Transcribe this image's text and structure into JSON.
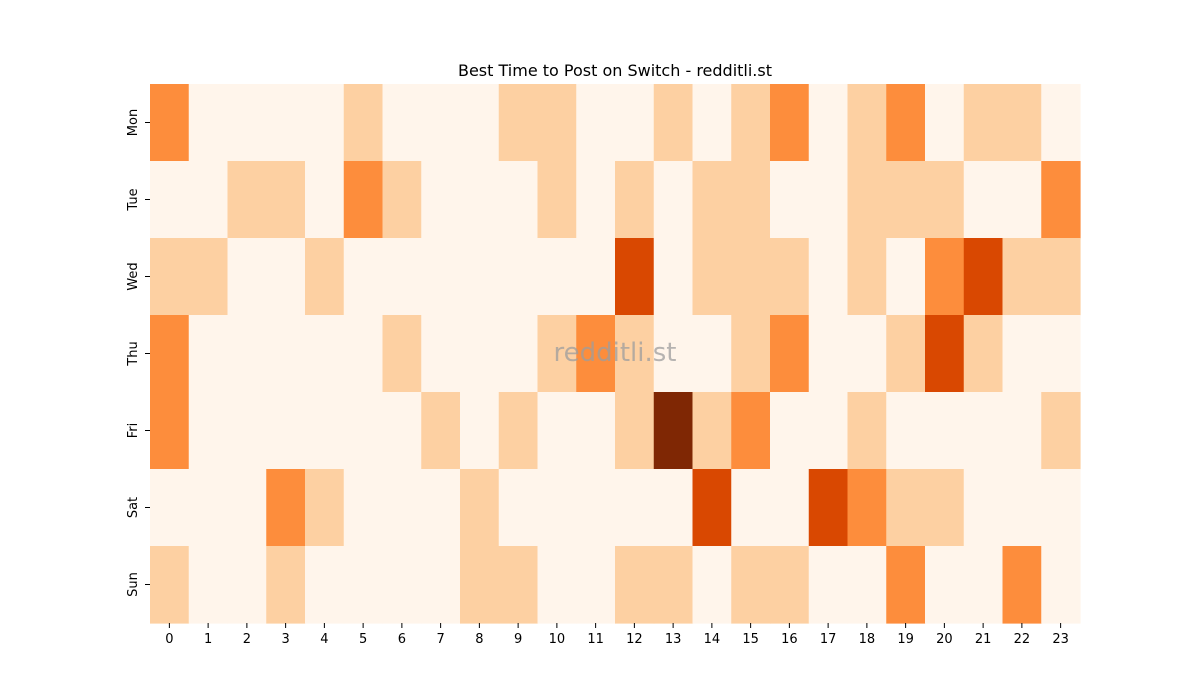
{
  "chart_data": {
    "type": "heatmap",
    "title": "Best Time to Post on Switch - redditli.st",
    "watermark": "redditli.st",
    "x_categories": [
      "0",
      "1",
      "2",
      "3",
      "4",
      "5",
      "6",
      "7",
      "8",
      "9",
      "10",
      "11",
      "12",
      "13",
      "14",
      "15",
      "16",
      "17",
      "18",
      "19",
      "20",
      "21",
      "22",
      "23"
    ],
    "y_categories": [
      "Mon",
      "Tue",
      "Wed",
      "Thu",
      "Fri",
      "Sat",
      "Sun"
    ],
    "values": [
      [
        2,
        0,
        0,
        0,
        0,
        1,
        0,
        0,
        0,
        1,
        1,
        0,
        0,
        1,
        0,
        1,
        2,
        0,
        1,
        2,
        0,
        1,
        1,
        0
      ],
      [
        0,
        0,
        1,
        1,
        0,
        2,
        1,
        0,
        0,
        0,
        1,
        0,
        1,
        0,
        1,
        1,
        0,
        0,
        1,
        1,
        1,
        0,
        0,
        2
      ],
      [
        1,
        1,
        0,
        0,
        1,
        0,
        0,
        0,
        0,
        0,
        0,
        0,
        3,
        0,
        1,
        1,
        1,
        0,
        1,
        0,
        2,
        3,
        1,
        1
      ],
      [
        2,
        0,
        0,
        0,
        0,
        0,
        1,
        0,
        0,
        0,
        1,
        2,
        1,
        0,
        0,
        1,
        2,
        0,
        0,
        1,
        3,
        1,
        0,
        0
      ],
      [
        2,
        0,
        0,
        0,
        0,
        0,
        0,
        1,
        0,
        1,
        0,
        0,
        1,
        4,
        1,
        2,
        0,
        0,
        1,
        0,
        0,
        0,
        0,
        1
      ],
      [
        0,
        0,
        0,
        2,
        1,
        0,
        0,
        0,
        1,
        0,
        0,
        0,
        0,
        0,
        3,
        0,
        0,
        3,
        2,
        1,
        1,
        0,
        0,
        0
      ],
      [
        1,
        0,
        0,
        1,
        0,
        0,
        0,
        0,
        1,
        1,
        0,
        0,
        1,
        1,
        0,
        1,
        1,
        0,
        0,
        2,
        0,
        0,
        2,
        0
      ]
    ],
    "colorscale": [
      "#fff5eb",
      "#fdd0a2",
      "#fd8d3c",
      "#d94801",
      "#7f2704"
    ],
    "colorbar": false,
    "grid": false
  }
}
